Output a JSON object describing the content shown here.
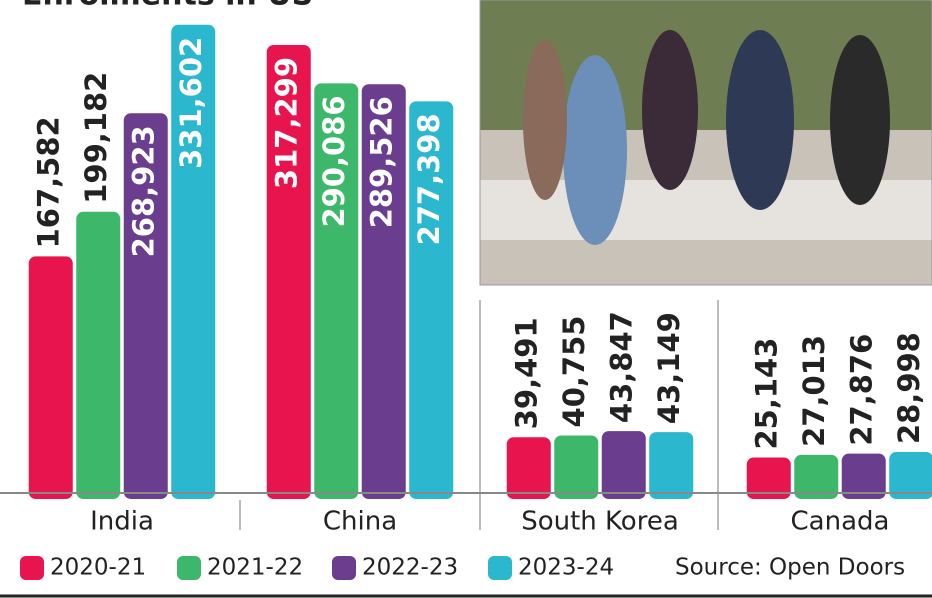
{
  "chart_data": {
    "type": "bar",
    "title": "Enrolments in US",
    "categories": [
      "India",
      "China",
      "South Korea",
      "Canada"
    ],
    "series": [
      {
        "name": "2020-21",
        "color": "#e8144e",
        "values": [
          167582,
          317299,
          39491,
          25143
        ],
        "value_labels": [
          "167,582",
          "317,299",
          "39,491",
          "25,143"
        ]
      },
      {
        "name": "2021-22",
        "color": "#3db86a",
        "values": [
          199182,
          290086,
          40755,
          27013
        ],
        "value_labels": [
          "199,182",
          "290,086",
          "40,755",
          "27,013"
        ]
      },
      {
        "name": "2022-23",
        "color": "#6a3d8f",
        "values": [
          268923,
          289526,
          43847,
          27876
        ],
        "value_labels": [
          "268,923",
          "289,526",
          "43,847",
          "27,876"
        ]
      },
      {
        "name": "2023-24",
        "color": "#2bb8cf",
        "values": [
          331602,
          277398,
          43149,
          28998
        ],
        "value_labels": [
          "331,602",
          "277,398",
          "43,149",
          "28,998"
        ]
      }
    ],
    "ylim": [
      0,
      335000
    ],
    "source": "Source: Open Doors"
  }
}
